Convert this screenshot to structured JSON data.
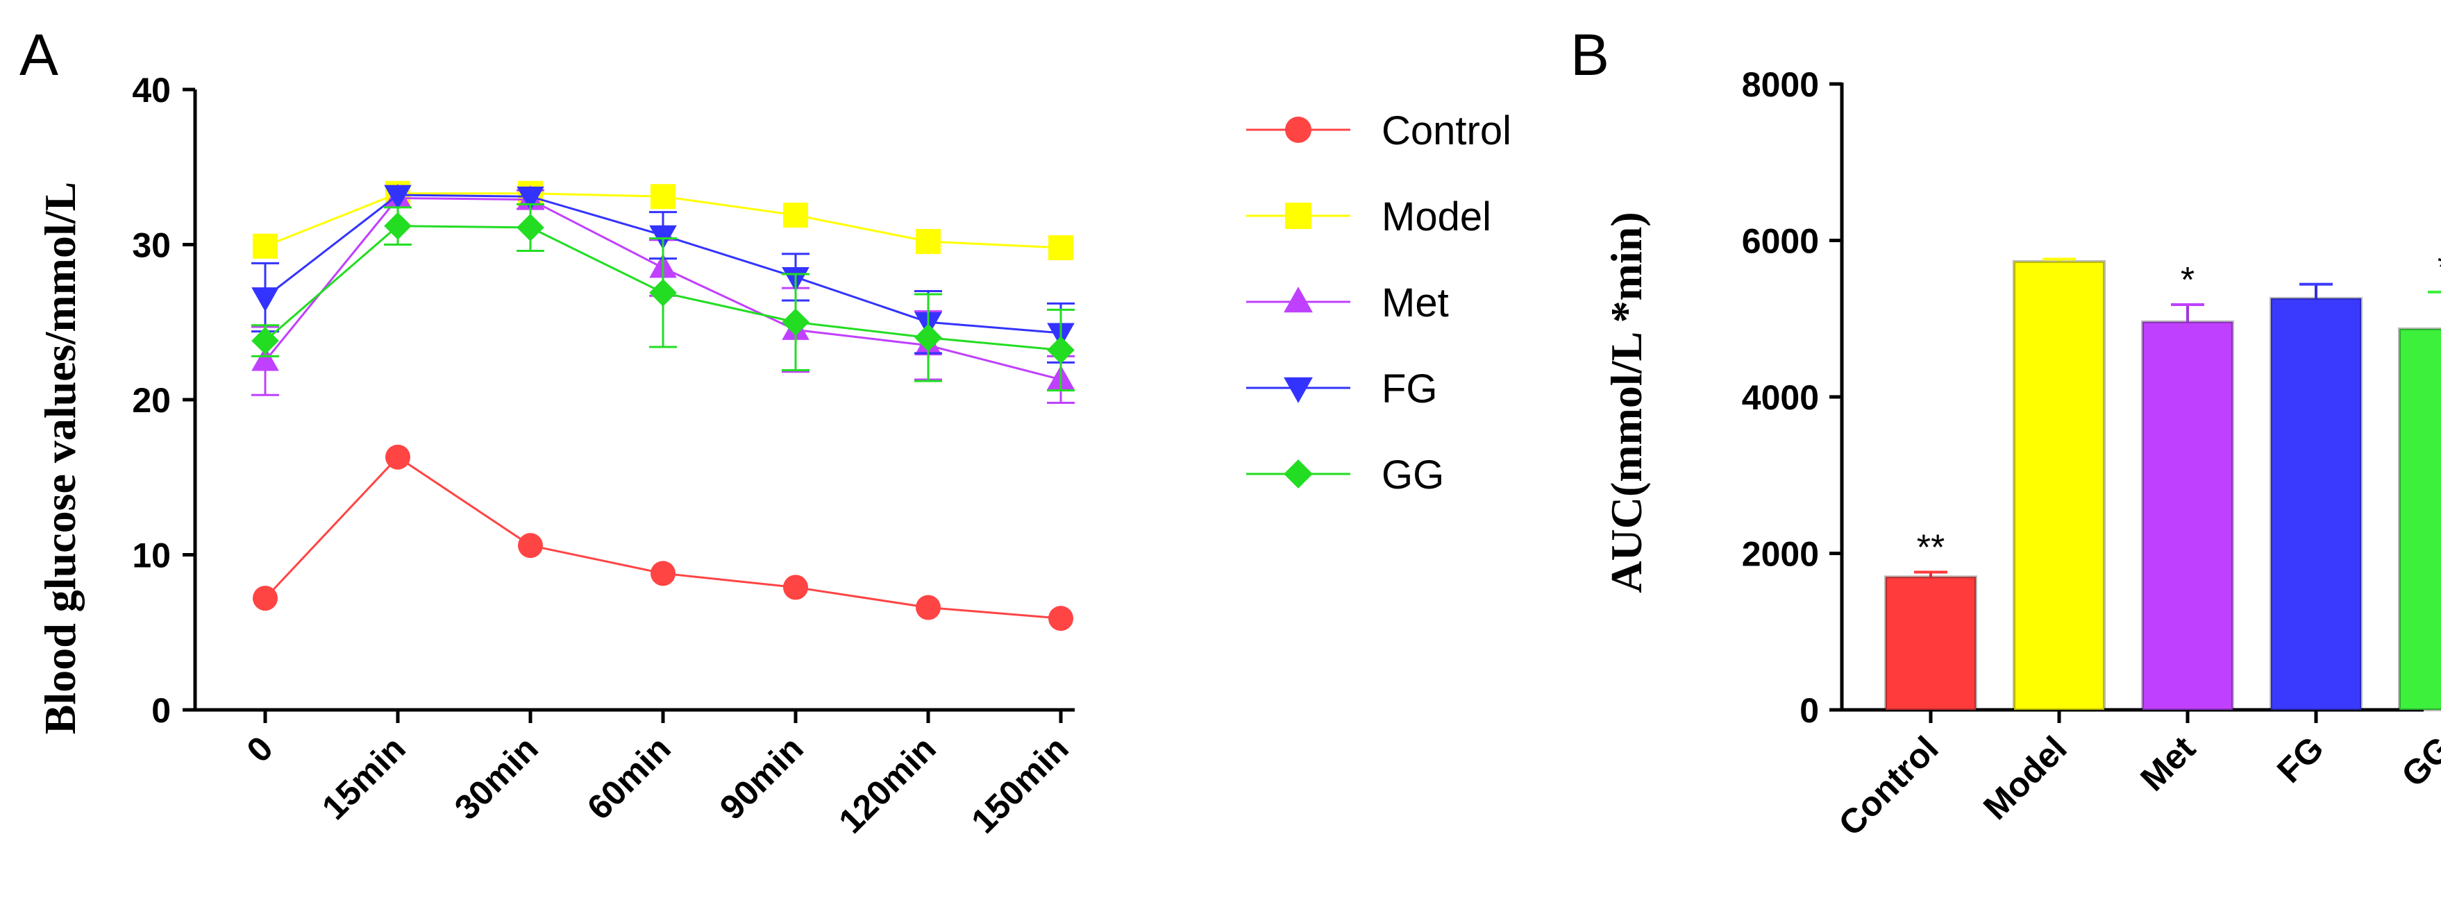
{
  "figure": {
    "panel_a_label": "A",
    "panel_b_label": "B"
  },
  "chart_data": [
    {
      "type": "line",
      "title": "",
      "xlabel": "",
      "ylabel": "Blood glucose values/mmol/L",
      "ylim": [
        0,
        40
      ],
      "yticks": [
        0,
        10,
        20,
        30,
        40
      ],
      "categories": [
        "0",
        "15min",
        "30min",
        "60min",
        "90min",
        "120min",
        "150min"
      ],
      "series": [
        {
          "name": "Control",
          "color": "#ff4444",
          "marker": "circle",
          "values": [
            7.2,
            16.3,
            10.6,
            8.8,
            7.9,
            6.6,
            5.9
          ],
          "errors": [
            0.3,
            0.3,
            0.3,
            0.3,
            0.3,
            0.3,
            0.3
          ]
        },
        {
          "name": "Model",
          "color": "#ffff00",
          "marker": "square",
          "values": [
            29.9,
            33.3,
            33.3,
            33.1,
            31.9,
            30.2,
            29.8
          ],
          "errors": [
            0.4,
            0.3,
            0.3,
            0.3,
            0.4,
            0.4,
            0.4
          ]
        },
        {
          "name": "Met",
          "color": "#c040ff",
          "marker": "triangle-up",
          "values": [
            22.5,
            33.0,
            32.9,
            28.5,
            24.5,
            23.5,
            21.3
          ],
          "errors": [
            2.2,
            0.5,
            0.6,
            1.8,
            2.7,
            2.2,
            1.5
          ]
        },
        {
          "name": "FG",
          "color": "#3333ff",
          "marker": "triangle-down",
          "values": [
            26.6,
            33.2,
            33.1,
            30.6,
            27.9,
            25.0,
            24.3
          ],
          "errors": [
            2.2,
            0.5,
            0.4,
            1.5,
            1.5,
            2.0,
            1.9
          ]
        },
        {
          "name": "GG",
          "color": "#22dd22",
          "marker": "diamond",
          "values": [
            23.8,
            31.2,
            31.1,
            26.9,
            25.0,
            24.0,
            23.2
          ],
          "errors": [
            1.0,
            1.2,
            1.5,
            3.5,
            3.1,
            2.8,
            2.6
          ]
        }
      ],
      "legend_position": "right"
    },
    {
      "type": "bar",
      "title": "",
      "xlabel": "",
      "ylabel": "AUC(mmol/L *min)",
      "ylim": [
        0,
        8000
      ],
      "yticks": [
        0,
        2000,
        4000,
        6000,
        8000
      ],
      "categories": [
        "Control",
        "Model",
        "Met",
        "FG",
        "GG"
      ],
      "values": [
        1700,
        5730,
        4960,
        5260,
        4870
      ],
      "errors": [
        60,
        30,
        220,
        180,
        470
      ],
      "colors": [
        "#ff3b3b",
        "#ffff00",
        "#c040ff",
        "#3a3aff",
        "#3cf03c"
      ],
      "significance": [
        "**",
        "",
        "*",
        "",
        "*"
      ]
    }
  ]
}
